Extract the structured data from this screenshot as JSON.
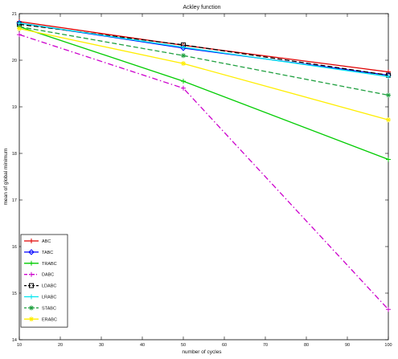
{
  "chart_data": {
    "type": "line",
    "title": "Ackley function",
    "xlabel": "number of cycles",
    "ylabel": "mean of global minimum",
    "xlim": [
      10,
      100
    ],
    "ylim": [
      14,
      21
    ],
    "x_ticks": [
      10,
      20,
      30,
      40,
      50,
      60,
      70,
      80,
      90,
      100
    ],
    "y_ticks": [
      14,
      15,
      16,
      17,
      18,
      19,
      20,
      21
    ],
    "y_tick_labels": [
      "14",
      "15",
      "16",
      "17",
      "18",
      "19",
      "20",
      "21"
    ],
    "grid": false,
    "legend_position": "bottom-left",
    "series": [
      {
        "name": "ABC",
        "color": "#e00000",
        "dash": "solid",
        "marker": "plus",
        "x": [
          10,
          50,
          100
        ],
        "y": [
          20.83,
          20.32,
          19.75
        ]
      },
      {
        "name": "TABC",
        "color": "#0000ff",
        "dash": "solid",
        "marker": "diamond",
        "x": [
          10,
          50,
          100
        ],
        "y": [
          20.8,
          20.26,
          19.68
        ]
      },
      {
        "name": "TRABC",
        "color": "#00cc00",
        "dash": "solid",
        "marker": "plus",
        "x": [
          10,
          50,
          100
        ],
        "y": [
          20.72,
          19.55,
          17.87
        ]
      },
      {
        "name": "DABC",
        "color": "#cc00cc",
        "dash": "dashdot",
        "marker": "plus",
        "x": [
          10,
          50,
          100
        ],
        "y": [
          20.55,
          19.4,
          14.65
        ]
      },
      {
        "name": "LDABC",
        "color": "#000000",
        "dash": "dashed",
        "marker": "square",
        "x": [
          10,
          50,
          100
        ],
        "y": [
          20.77,
          20.33,
          19.68
        ]
      },
      {
        "name": "LRABC",
        "color": "#00e5ee",
        "dash": "solid",
        "marker": "plus",
        "x": [
          10,
          50,
          100
        ],
        "y": [
          20.8,
          20.28,
          19.65
        ]
      },
      {
        "name": "STABC",
        "color": "#20a040",
        "dash": "dashed",
        "marker": "star",
        "x": [
          10,
          50,
          100
        ],
        "y": [
          20.72,
          20.1,
          19.25
        ]
      },
      {
        "name": "ERABC",
        "color": "#ffee00",
        "dash": "solid",
        "marker": "star",
        "x": [
          10,
          50,
          100
        ],
        "y": [
          20.68,
          19.93,
          18.72
        ]
      }
    ]
  }
}
